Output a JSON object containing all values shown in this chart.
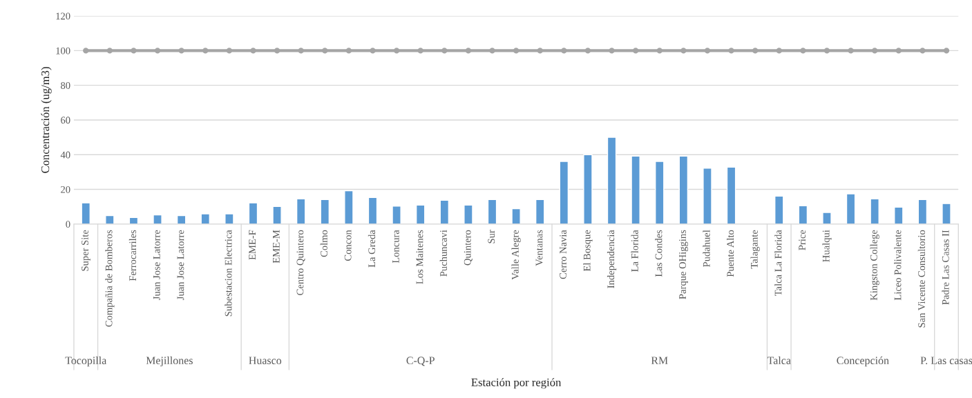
{
  "chart_data": {
    "type": "bar",
    "xlabel": "Estación por región",
    "ylabel": "Concentración (ug/m3)",
    "categories": [
      "Super Site",
      "Compañia de Bomberos",
      "Ferrocarriles",
      "Juan Jose Latorre",
      "Juan Jose Latorre",
      null,
      "Subestacion Electrica",
      "EME-F",
      "EME-M",
      "Centro Quintero",
      "Colmo",
      "Concon",
      "La Greda",
      "Loncura",
      "Los Maitenes",
      "Puchuncavi",
      "Quintero",
      "Sur",
      "Valle Alegre",
      "Ventanas",
      "Cerro Navia",
      "El Bosque",
      "Independencia",
      "La Florida",
      "Las Condes",
      "Parque OHiggins",
      "Pudahuel",
      "Puente Alto",
      "Talagante",
      "Talca La Florida",
      "Price",
      "Hualqui",
      null,
      "Kingston College",
      "Liceo Polivalente",
      "San Vicente Consultorio",
      "Padre Las Casas II"
    ],
    "series": [
      {
        "color": "#5b9bd5",
        "values": [
          12.2,
          4.9,
          3.8,
          5.3,
          4.9,
          5.9,
          5.9,
          12.2,
          10.2,
          14.5,
          14.1,
          19.2,
          15.3,
          10.4,
          11,
          13.7,
          11,
          14.1,
          8.9,
          14.1,
          36.1,
          40,
          50,
          39.2,
          36.1,
          39.2,
          32.2,
          32.8,
          null,
          16.1,
          10.6,
          6.7,
          17.4,
          14.5,
          9.8,
          14.1,
          11.8
        ]
      },
      {
        "type": "line",
        "color": "#a5a5a5",
        "values": [
          100,
          100,
          100,
          100,
          100,
          100,
          100,
          100,
          100,
          100,
          100,
          100,
          100,
          100,
          100,
          100,
          100,
          100,
          100,
          100,
          100,
          100,
          100,
          100,
          100,
          100,
          100,
          100,
          100,
          100,
          100,
          100,
          100,
          100,
          100,
          100,
          100
        ]
      }
    ],
    "marker": "circle",
    "line_style": "solid",
    "ylim": [
      0,
      120
    ],
    "yticks": [
      0,
      20,
      40,
      60,
      80,
      100,
      120
    ],
    "grid": "y",
    "legend": false,
    "annotations": [
      "Tocopilla",
      "Mejillones",
      "Huasco",
      "C-Q-P",
      "RM",
      "Talca",
      "Concepción",
      "P. Las casas"
    ]
  }
}
